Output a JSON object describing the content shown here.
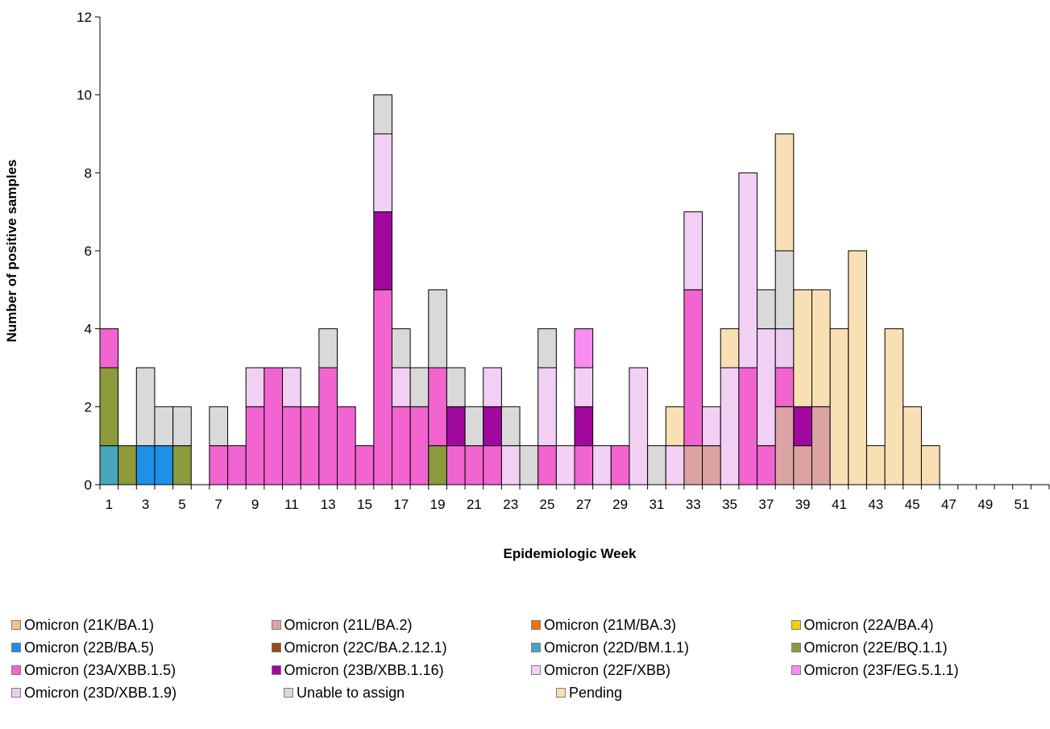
{
  "chart_data": {
    "type": "bar",
    "stacked": true,
    "xlabel": "Epidemiologic Week",
    "ylabel": "Number of positive samples",
    "ylim": [
      0,
      12
    ],
    "yticks": [
      0,
      2,
      4,
      6,
      8,
      10,
      12
    ],
    "categories": [
      1,
      2,
      3,
      4,
      5,
      6,
      7,
      8,
      9,
      10,
      11,
      12,
      13,
      14,
      15,
      16,
      17,
      18,
      19,
      20,
      21,
      22,
      23,
      24,
      25,
      26,
      27,
      28,
      29,
      30,
      31,
      32,
      33,
      34,
      35,
      36,
      37,
      38,
      39,
      40,
      41,
      42,
      43,
      44,
      45,
      46,
      47,
      48,
      49,
      50,
      51,
      52
    ],
    "xtick_labels": [
      "1",
      "3",
      "5",
      "7",
      "9",
      "11",
      "13",
      "15",
      "17",
      "19",
      "21",
      "23",
      "25",
      "27",
      "29",
      "31",
      "33",
      "35",
      "37",
      "39",
      "41",
      "43",
      "45",
      "47",
      "49",
      "51"
    ],
    "legend_position": "bottom",
    "series": [
      {
        "name": "Omicron (21K/BA.1)",
        "color": "#f4c28f",
        "values": [
          0,
          0,
          0,
          0,
          0,
          0,
          0,
          0,
          0,
          0,
          0,
          0,
          0,
          0,
          0,
          0,
          0,
          0,
          0,
          0,
          0,
          0,
          0,
          0,
          0,
          0,
          0,
          0,
          0,
          0,
          0,
          0,
          0,
          0,
          0,
          0,
          0,
          0,
          0,
          0,
          0,
          0,
          0,
          0,
          0,
          0,
          0,
          0,
          0,
          0,
          0,
          0
        ]
      },
      {
        "name": "Omicron (21L/BA.2)",
        "color": "#dba3a3",
        "values": [
          0,
          0,
          0,
          0,
          0,
          0,
          0,
          0,
          0,
          0,
          0,
          0,
          0,
          0,
          0,
          0,
          0,
          0,
          0,
          0,
          0,
          0,
          0,
          0,
          0,
          0,
          0,
          0,
          0,
          0,
          0,
          0,
          1,
          1,
          0,
          0,
          0,
          2,
          1,
          2,
          0,
          0,
          0,
          0,
          0,
          0,
          0,
          0,
          0,
          0,
          0,
          0
        ]
      },
      {
        "name": "Omicron (21M/BA.3)",
        "color": "#f07016",
        "values": [
          0,
          0,
          0,
          0,
          0,
          0,
          0,
          0,
          0,
          0,
          0,
          0,
          0,
          0,
          0,
          0,
          0,
          0,
          0,
          0,
          0,
          0,
          0,
          0,
          0,
          0,
          0,
          0,
          0,
          0,
          0,
          0,
          0,
          0,
          0,
          0,
          0,
          0,
          0,
          0,
          0,
          0,
          0,
          0,
          0,
          0,
          0,
          0,
          0,
          0,
          0,
          0
        ]
      },
      {
        "name": "Omicron (22A/BA.4)",
        "color": "#f4d000",
        "values": [
          0,
          0,
          0,
          0,
          0,
          0,
          0,
          0,
          0,
          0,
          0,
          0,
          0,
          0,
          0,
          0,
          0,
          0,
          0,
          0,
          0,
          0,
          0,
          0,
          0,
          0,
          0,
          0,
          0,
          0,
          0,
          0,
          0,
          0,
          0,
          0,
          0,
          0,
          0,
          0,
          0,
          0,
          0,
          0,
          0,
          0,
          0,
          0,
          0,
          0,
          0,
          0
        ]
      },
      {
        "name": "Omicron (22B/BA.5)",
        "color": "#1e90e6",
        "values": [
          0,
          0,
          1,
          1,
          0,
          0,
          0,
          0,
          0,
          0,
          0,
          0,
          0,
          0,
          0,
          0,
          0,
          0,
          0,
          0,
          0,
          0,
          0,
          0,
          0,
          0,
          0,
          0,
          0,
          0,
          0,
          0,
          0,
          0,
          0,
          0,
          0,
          0,
          0,
          0,
          0,
          0,
          0,
          0,
          0,
          0,
          0,
          0,
          0,
          0,
          0,
          0
        ]
      },
      {
        "name": "Omicron (22C/BA.2.12.1)",
        "color": "#9a4a16",
        "values": [
          0,
          0,
          0,
          0,
          0,
          0,
          0,
          0,
          0,
          0,
          0,
          0,
          0,
          0,
          0,
          0,
          0,
          0,
          0,
          0,
          0,
          0,
          0,
          0,
          0,
          0,
          0,
          0,
          0,
          0,
          0,
          0,
          0,
          0,
          0,
          0,
          0,
          0,
          0,
          0,
          0,
          0,
          0,
          0,
          0,
          0,
          0,
          0,
          0,
          0,
          0,
          0
        ]
      },
      {
        "name": "Omicron (22D/BM.1.1)",
        "color": "#4aa6bc",
        "values": [
          1,
          0,
          0,
          0,
          0,
          0,
          0,
          0,
          0,
          0,
          0,
          0,
          0,
          0,
          0,
          0,
          0,
          0,
          0,
          0,
          0,
          0,
          0,
          0,
          0,
          0,
          0,
          0,
          0,
          0,
          0,
          0,
          0,
          0,
          0,
          0,
          0,
          0,
          0,
          0,
          0,
          0,
          0,
          0,
          0,
          0,
          0,
          0,
          0,
          0,
          0,
          0
        ]
      },
      {
        "name": "Omicron (22E/BQ.1.1)",
        "color": "#8c9a3c",
        "values": [
          2,
          1,
          0,
          0,
          1,
          0,
          0,
          0,
          0,
          0,
          0,
          0,
          0,
          0,
          0,
          0,
          0,
          0,
          1,
          0,
          0,
          0,
          0,
          0,
          0,
          0,
          0,
          0,
          0,
          0,
          0,
          0,
          0,
          0,
          0,
          0,
          0,
          0,
          0,
          0,
          0,
          0,
          0,
          0,
          0,
          0,
          0,
          0,
          0,
          0,
          0,
          0
        ]
      },
      {
        "name": "Omicron (23A/XBB.1.5)",
        "color": "#f264d0",
        "values": [
          1,
          0,
          0,
          0,
          0,
          0,
          1,
          1,
          2,
          3,
          2,
          2,
          3,
          2,
          1,
          5,
          2,
          2,
          2,
          1,
          1,
          1,
          0,
          0,
          1,
          0,
          1,
          0,
          1,
          0,
          0,
          0,
          4,
          0,
          0,
          3,
          1,
          1,
          0,
          0,
          0,
          0,
          0,
          0,
          0,
          0,
          0,
          0,
          0,
          0,
          0,
          0
        ]
      },
      {
        "name": "Omicron (23B/XBB.1.16)",
        "color": "#a0089e",
        "values": [
          0,
          0,
          0,
          0,
          0,
          0,
          0,
          0,
          0,
          0,
          0,
          0,
          0,
          0,
          0,
          2,
          0,
          0,
          0,
          1,
          0,
          1,
          0,
          0,
          0,
          0,
          1,
          0,
          0,
          0,
          0,
          0,
          0,
          0,
          0,
          0,
          0,
          0,
          1,
          0,
          0,
          0,
          0,
          0,
          0,
          0,
          0,
          0,
          0,
          0,
          0,
          0
        ]
      },
      {
        "name": "Omicron (22F/XBB)",
        "color": "#f2d0f4",
        "values": [
          0,
          0,
          0,
          0,
          0,
          0,
          0,
          0,
          1,
          0,
          1,
          0,
          0,
          0,
          0,
          2,
          1,
          0,
          0,
          0,
          0,
          1,
          1,
          0,
          2,
          1,
          1,
          1,
          0,
          3,
          0,
          1,
          2,
          1,
          3,
          5,
          3,
          0,
          0,
          0,
          0,
          0,
          0,
          0,
          0,
          0,
          0,
          0,
          0,
          0,
          0,
          0
        ]
      },
      {
        "name": "Omicron (23F/EG.5.1.1)",
        "color": "#f98cf0",
        "values": [
          0,
          0,
          0,
          0,
          0,
          0,
          0,
          0,
          0,
          0,
          0,
          0,
          0,
          0,
          0,
          0,
          0,
          0,
          0,
          0,
          0,
          0,
          0,
          0,
          0,
          0,
          1,
          0,
          0,
          0,
          0,
          0,
          0,
          0,
          0,
          0,
          0,
          0,
          0,
          0,
          0,
          0,
          0,
          0,
          0,
          0,
          0,
          0,
          0,
          0,
          0,
          0
        ]
      },
      {
        "name": "Omicron (23D/XBB.1.9)",
        "color": "#eccdf0",
        "values": [
          0,
          0,
          0,
          0,
          0,
          0,
          0,
          0,
          0,
          0,
          0,
          0,
          0,
          0,
          0,
          0,
          0,
          0,
          0,
          0,
          0,
          0,
          0,
          0,
          0,
          0,
          0,
          0,
          0,
          0,
          0,
          0,
          0,
          0,
          0,
          0,
          0,
          1,
          0,
          0,
          0,
          0,
          0,
          0,
          0,
          0,
          0,
          0,
          0,
          0,
          0,
          0
        ]
      },
      {
        "name": "Unable to assign",
        "color": "#d9d9d9",
        "values": [
          0,
          0,
          2,
          1,
          1,
          0,
          1,
          0,
          0,
          0,
          0,
          0,
          1,
          0,
          0,
          1,
          1,
          1,
          2,
          1,
          1,
          0,
          1,
          1,
          1,
          0,
          0,
          0,
          0,
          0,
          1,
          0,
          0,
          0,
          0,
          0,
          1,
          2,
          0,
          0,
          0,
          0,
          0,
          0,
          0,
          0,
          0,
          0,
          0,
          0,
          0,
          0
        ]
      },
      {
        "name": "Pending",
        "color": "#f9dfb4",
        "values": [
          0,
          0,
          0,
          0,
          0,
          0,
          0,
          0,
          0,
          0,
          0,
          0,
          0,
          0,
          0,
          0,
          0,
          0,
          0,
          0,
          0,
          0,
          0,
          0,
          0,
          0,
          0,
          0,
          0,
          0,
          0,
          1,
          0,
          0,
          1,
          0,
          0,
          3,
          3,
          3,
          4,
          6,
          1,
          4,
          2,
          1,
          0,
          0,
          0,
          0,
          0,
          0
        ]
      }
    ]
  }
}
